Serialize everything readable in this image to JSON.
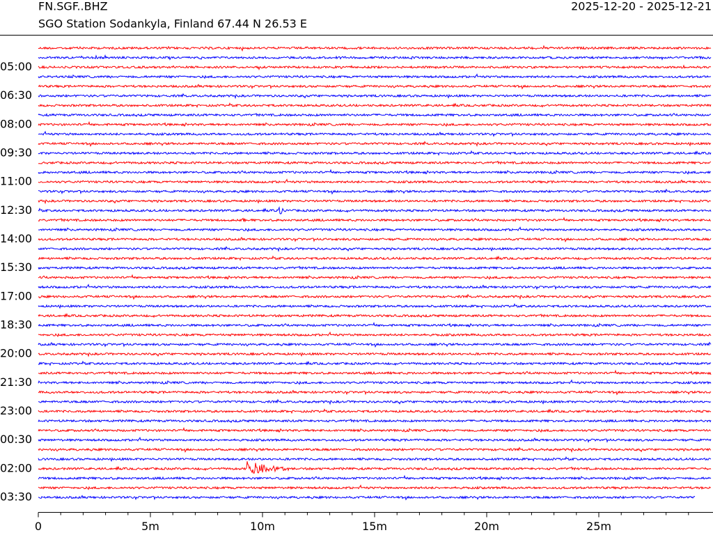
{
  "chart_data": {
    "type": "helicorder",
    "title": "FN.SGF..BHZ",
    "subtitle": "SGO Station Sodankyla, Finland  67.44 N 26.53 E",
    "date_range": "2025-12-20 - 2025-12-21",
    "row_labels": [
      null,
      null,
      "05:00",
      null,
      null,
      "06:30",
      null,
      null,
      "08:00",
      null,
      null,
      "09:30",
      null,
      null,
      "11:00",
      null,
      null,
      "12:30",
      null,
      null,
      "14:00",
      null,
      null,
      "15:30",
      null,
      null,
      "17:00",
      null,
      null,
      "18:30",
      null,
      null,
      "20:00",
      null,
      null,
      "21:30",
      null,
      null,
      "23:00",
      null,
      null,
      "00:30",
      null,
      null,
      "02:00",
      null,
      null,
      "03:30"
    ],
    "colors": [
      "#ff0000",
      "#0000ff"
    ],
    "xlim": [
      0,
      30
    ],
    "xticks": [
      {
        "value": 0,
        "label": "0"
      },
      {
        "value": 5,
        "label": "5m"
      },
      {
        "value": 10,
        "label": "10m"
      },
      {
        "value": 15,
        "label": "15m"
      },
      {
        "value": 20,
        "label": "20m"
      },
      {
        "value": 25,
        "label": "25m"
      }
    ],
    "xminor_ticks": [
      1,
      2,
      3,
      4,
      6,
      7,
      8,
      9,
      11,
      12,
      13,
      14,
      16,
      17,
      18,
      19,
      21,
      22,
      23,
      24,
      26,
      27,
      28,
      29
    ]
  }
}
